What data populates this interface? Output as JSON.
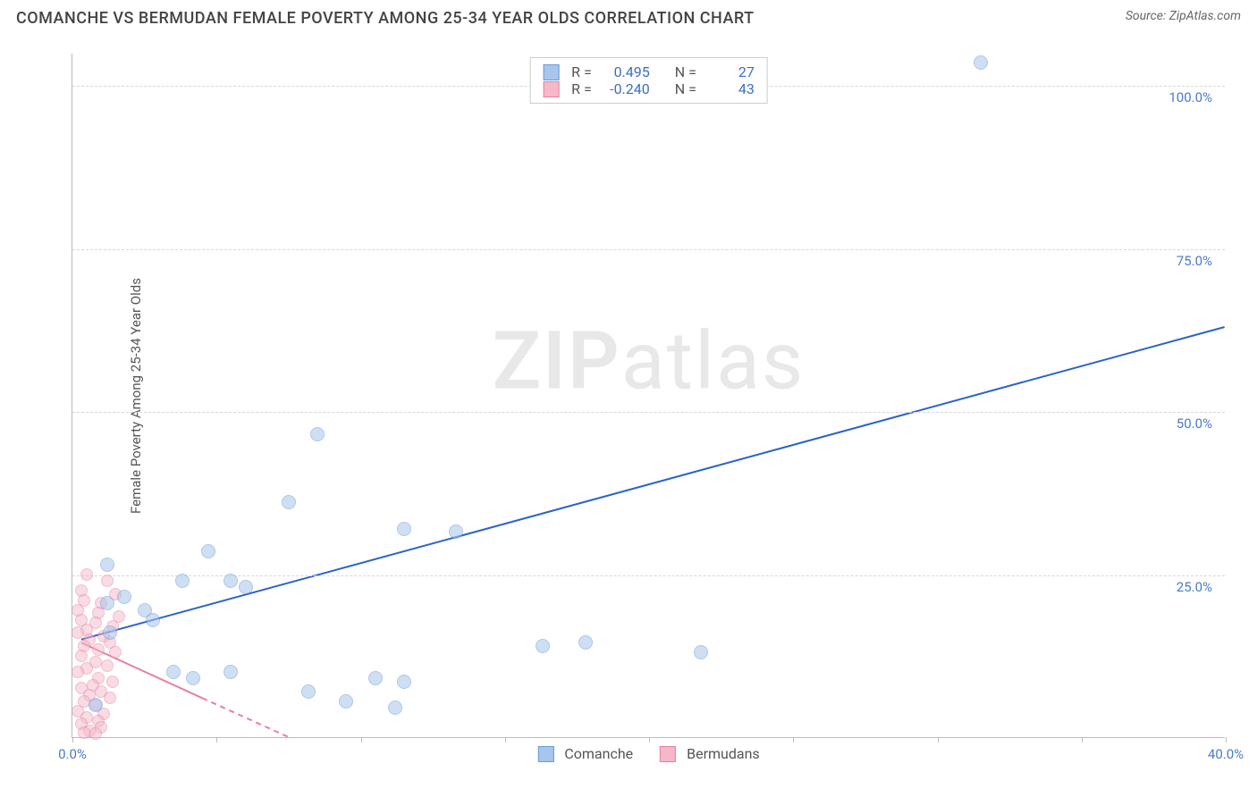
{
  "title": "COMANCHE VS BERMUDAN FEMALE POVERTY AMONG 25-34 YEAR OLDS CORRELATION CHART",
  "source_label": "Source: ",
  "source_name": "ZipAtlas.com",
  "y_axis_label": "Female Poverty Among 25-34 Year Olds",
  "watermark_bold": "ZIP",
  "watermark_rest": "atlas",
  "chart": {
    "type": "scatter",
    "xlim": [
      0,
      40
    ],
    "ylim": [
      0,
      105
    ],
    "x_ticks": [
      0,
      5,
      10,
      15,
      20,
      25,
      30,
      35,
      40
    ],
    "x_tick_labels": {
      "0": "0.0%",
      "40": "40.0%"
    },
    "y_ticks": [
      25,
      50,
      75,
      100
    ],
    "y_tick_labels": {
      "25": "25.0%",
      "50": "50.0%",
      "75": "75.0%",
      "100": "100.0%"
    },
    "background_color": "#ffffff",
    "grid_color": "#d8d8d8",
    "axis_color": "#bbbbbb",
    "tick_label_color": "#4a7bc8"
  },
  "series": {
    "comanche": {
      "label": "Comanche",
      "color_fill": "#a8c5eb",
      "color_stroke": "#6a9bd8",
      "marker_radius": 8,
      "fill_opacity": 0.55,
      "R": "0.495",
      "N": "27",
      "trend": {
        "x1": 0.3,
        "y1": 15,
        "x2": 40,
        "y2": 63,
        "color": "#2b62c9",
        "width": 2,
        "dash": "none"
      },
      "points": [
        [
          31.5,
          103.5
        ],
        [
          8.5,
          46.5
        ],
        [
          7.5,
          36
        ],
        [
          11.5,
          32
        ],
        [
          13.3,
          31.5
        ],
        [
          4.7,
          28.5
        ],
        [
          1.2,
          26.5
        ],
        [
          3.8,
          24
        ],
        [
          5.5,
          24
        ],
        [
          6,
          23
        ],
        [
          1.8,
          21.5
        ],
        [
          1.2,
          20.5
        ],
        [
          2.5,
          19.5
        ],
        [
          2.8,
          18
        ],
        [
          1.3,
          16
        ],
        [
          16.3,
          14
        ],
        [
          17.8,
          14.5
        ],
        [
          21.8,
          13
        ],
        [
          5.5,
          10
        ],
        [
          10.5,
          9
        ],
        [
          11.5,
          8.5
        ],
        [
          3.5,
          10
        ],
        [
          4.2,
          9
        ],
        [
          8.2,
          7
        ],
        [
          9.5,
          5.5
        ],
        [
          11.2,
          4.5
        ],
        [
          0.8,
          5
        ]
      ]
    },
    "bermudans": {
      "label": "Bermudans",
      "color_fill": "#f5b8c9",
      "color_stroke": "#e87fa0",
      "marker_radius": 7,
      "fill_opacity": 0.5,
      "R": "-0.240",
      "N": "43",
      "trend": {
        "x1": 0.3,
        "y1": 14.5,
        "x2": 9,
        "y2": -3,
        "color": "#e87fa0",
        "width": 2,
        "dash": "6,5"
      },
      "points": [
        [
          0.5,
          25
        ],
        [
          1.2,
          24
        ],
        [
          0.3,
          22.5
        ],
        [
          1.5,
          22
        ],
        [
          0.4,
          21
        ],
        [
          1.0,
          20.5
        ],
        [
          0.2,
          19.5
        ],
        [
          0.9,
          19
        ],
        [
          1.6,
          18.5
        ],
        [
          0.3,
          18
        ],
        [
          0.8,
          17.5
        ],
        [
          1.4,
          17
        ],
        [
          0.5,
          16.5
        ],
        [
          0.2,
          16
        ],
        [
          1.1,
          15.5
        ],
        [
          0.6,
          15
        ],
        [
          1.3,
          14.5
        ],
        [
          0.4,
          14
        ],
        [
          0.9,
          13.5
        ],
        [
          1.5,
          13
        ],
        [
          0.3,
          12.5
        ],
        [
          0.8,
          11.5
        ],
        [
          1.2,
          11
        ],
        [
          0.5,
          10.5
        ],
        [
          0.2,
          10
        ],
        [
          0.9,
          9
        ],
        [
          1.4,
          8.5
        ],
        [
          0.7,
          8
        ],
        [
          0.3,
          7.5
        ],
        [
          1.0,
          7
        ],
        [
          0.6,
          6.5
        ],
        [
          1.3,
          6
        ],
        [
          0.4,
          5.5
        ],
        [
          0.8,
          5
        ],
        [
          0.2,
          4
        ],
        [
          1.1,
          3.5
        ],
        [
          0.5,
          3
        ],
        [
          0.9,
          2.5
        ],
        [
          0.3,
          2
        ],
        [
          1.0,
          1.5
        ],
        [
          0.6,
          1
        ],
        [
          0.4,
          0.7
        ],
        [
          0.8,
          0.5
        ]
      ]
    }
  },
  "legend_top": {
    "r_prefix": "R =",
    "n_prefix": "N ="
  }
}
